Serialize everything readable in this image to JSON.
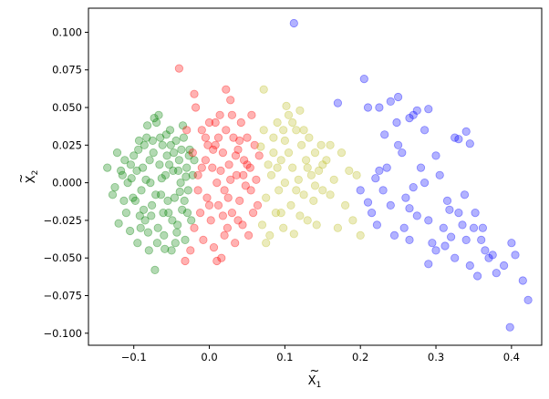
{
  "chart_data": {
    "type": "scatter",
    "title": "",
    "xlabel_base": "X",
    "xlabel_sub": "1",
    "ylabel_base": "X",
    "ylabel_sub": "2",
    "xlim": [
      -0.16,
      0.44
    ],
    "ylim": [
      -0.108,
      0.116
    ],
    "xticks": [
      -0.1,
      0.0,
      0.1,
      0.2,
      0.3,
      0.4
    ],
    "xtick_labels": [
      "−0.1",
      "0.0",
      "0.1",
      "0.2",
      "0.3",
      "0.4"
    ],
    "yticks": [
      -0.1,
      -0.075,
      -0.05,
      -0.025,
      0.0,
      0.025,
      0.05,
      0.075,
      0.1
    ],
    "ytick_labels": [
      "−0.100",
      "−0.075",
      "−0.050",
      "−0.025",
      "0.000",
      "0.025",
      "0.050",
      "0.075",
      "0.100"
    ],
    "grid": false,
    "legend": "none",
    "point_alpha": 0.3,
    "series": [
      {
        "color": "#008000",
        "points": [
          [
            -0.135,
            0.01
          ],
          [
            -0.122,
            0.02
          ],
          [
            -0.128,
            -0.008
          ],
          [
            -0.12,
            -0.027
          ],
          [
            -0.115,
            0.005
          ],
          [
            -0.11,
            -0.02
          ],
          [
            -0.112,
            0.015
          ],
          [
            -0.105,
            -0.032
          ],
          [
            -0.103,
            0.003
          ],
          [
            -0.1,
            0.018
          ],
          [
            -0.098,
            -0.012
          ],
          [
            -0.095,
            -0.04
          ],
          [
            -0.093,
            0.028
          ],
          [
            -0.09,
            -0.005
          ],
          [
            -0.088,
            0.01
          ],
          [
            -0.085,
            -0.025
          ],
          [
            -0.083,
            0.03
          ],
          [
            -0.08,
            -0.045
          ],
          [
            -0.078,
            0.0
          ],
          [
            -0.076,
            -0.015
          ],
          [
            -0.074,
            0.02
          ],
          [
            -0.072,
            -0.058
          ],
          [
            -0.07,
            0.04
          ],
          [
            -0.068,
            -0.03
          ],
          [
            -0.066,
            0.012
          ],
          [
            -0.064,
            -0.008
          ],
          [
            -0.062,
            0.025
          ],
          [
            -0.06,
            -0.035
          ],
          [
            -0.058,
            0.005
          ],
          [
            -0.056,
            0.018
          ],
          [
            -0.054,
            -0.02
          ],
          [
            -0.052,
            0.035
          ],
          [
            -0.05,
            -0.045
          ],
          [
            -0.048,
            0.008
          ],
          [
            -0.046,
            -0.01
          ],
          [
            -0.044,
            0.028
          ],
          [
            -0.042,
            -0.028
          ],
          [
            -0.04,
            0.015
          ],
          [
            -0.038,
            0.0
          ],
          [
            -0.036,
            -0.018
          ],
          [
            -0.034,
            0.03
          ],
          [
            -0.032,
            -0.038
          ],
          [
            -0.03,
            0.01
          ],
          [
            -0.028,
            -0.005
          ],
          [
            -0.026,
            0.022
          ],
          [
            -0.024,
            -0.025
          ],
          [
            -0.022,
            0.005
          ],
          [
            -0.02,
            0.015
          ],
          [
            -0.108,
            0.0
          ],
          [
            -0.096,
            0.008
          ],
          [
            -0.087,
            -0.018
          ],
          [
            -0.079,
            0.015
          ],
          [
            -0.071,
            -0.008
          ],
          [
            -0.063,
            0.003
          ],
          [
            -0.055,
            -0.012
          ],
          [
            -0.047,
            0.02
          ],
          [
            -0.039,
            -0.006
          ],
          [
            -0.031,
            0.004
          ],
          [
            -0.067,
            0.045
          ],
          [
            -0.073,
            0.043
          ],
          [
            -0.082,
            0.038
          ],
          [
            -0.091,
            -0.03
          ],
          [
            -0.059,
            -0.044
          ],
          [
            -0.045,
            -0.04
          ],
          [
            -0.035,
            0.038
          ],
          [
            -0.077,
            -0.022
          ],
          [
            -0.065,
            0.03
          ],
          [
            -0.053,
            0.012
          ],
          [
            -0.043,
            -0.033
          ],
          [
            -0.101,
            -0.01
          ],
          [
            -0.117,
            0.008
          ],
          [
            -0.125,
            -0.003
          ],
          [
            -0.094,
            0.022
          ],
          [
            -0.084,
            0.002
          ],
          [
            -0.075,
            0.028
          ],
          [
            -0.069,
            -0.04
          ],
          [
            -0.061,
            -0.02
          ],
          [
            -0.051,
            0.025
          ],
          [
            -0.041,
            0.008
          ],
          [
            -0.033,
            -0.012
          ],
          [
            -0.027,
            0.018
          ],
          [
            -0.057,
            0.032
          ],
          [
            -0.086,
            0.025
          ],
          [
            -0.092,
            -0.022
          ],
          [
            -0.104,
            0.012
          ],
          [
            -0.113,
            -0.012
          ],
          [
            -0.081,
            -0.033
          ],
          [
            -0.049,
            -0.025
          ],
          [
            -0.037,
            0.022
          ],
          [
            -0.029,
            -0.02
          ]
        ]
      },
      {
        "color": "#ff0000",
        "points": [
          [
            -0.04,
            0.076
          ],
          [
            -0.032,
            -0.052
          ],
          [
            -0.03,
            0.035
          ],
          [
            -0.025,
            -0.045
          ],
          [
            -0.022,
            0.02
          ],
          [
            -0.02,
            -0.03
          ],
          [
            -0.018,
            0.05
          ],
          [
            -0.015,
            0.005
          ],
          [
            -0.012,
            -0.02
          ],
          [
            -0.01,
            0.035
          ],
          [
            -0.008,
            -0.038
          ],
          [
            -0.005,
            0.015
          ],
          [
            -0.003,
            -0.01
          ],
          [
            0.0,
            0.04
          ],
          [
            0.002,
            -0.025
          ],
          [
            0.004,
            0.01
          ],
          [
            0.006,
            -0.043
          ],
          [
            0.008,
            0.025
          ],
          [
            0.01,
            0.0
          ],
          [
            0.012,
            -0.015
          ],
          [
            0.014,
            0.045
          ],
          [
            0.016,
            -0.05
          ],
          [
            0.018,
            0.02
          ],
          [
            0.02,
            -0.005
          ],
          [
            0.022,
            0.035
          ],
          [
            0.024,
            -0.03
          ],
          [
            0.026,
            0.012
          ],
          [
            0.028,
            0.055
          ],
          [
            0.03,
            -0.02
          ],
          [
            0.032,
            0.03
          ],
          [
            0.034,
            -0.04
          ],
          [
            0.036,
            0.005
          ],
          [
            0.038,
            0.022
          ],
          [
            0.04,
            -0.012
          ],
          [
            0.042,
            0.04
          ],
          [
            0.044,
            -0.028
          ],
          [
            0.046,
            0.015
          ],
          [
            0.048,
            -0.002
          ],
          [
            0.05,
            0.03
          ],
          [
            0.052,
            -0.035
          ],
          [
            0.054,
            0.01
          ],
          [
            0.056,
            0.045
          ],
          [
            0.058,
            -0.02
          ],
          [
            0.06,
            0.025
          ],
          [
            0.062,
            0.002
          ],
          [
            0.064,
            -0.015
          ],
          [
            0.066,
            0.018
          ],
          [
            -0.02,
            0.059
          ],
          [
            0.022,
            0.062
          ],
          [
            0.01,
            -0.052
          ],
          [
            -0.005,
            0.03
          ],
          [
            0.0,
            -0.015
          ],
          [
            0.005,
            0.022
          ],
          [
            0.015,
            0.008
          ],
          [
            0.025,
            -0.01
          ],
          [
            0.035,
            0.018
          ],
          [
            0.045,
            0.005
          ],
          [
            -0.015,
            -0.005
          ],
          [
            0.03,
            0.045
          ],
          [
            0.04,
            0.028
          ],
          [
            0.05,
            0.012
          ],
          [
            0.02,
            -0.035
          ],
          [
            0.012,
            0.03
          ],
          [
            -0.01,
            0.01
          ],
          [
            0.055,
            -0.005
          ],
          [
            0.018,
            -0.022
          ],
          [
            0.028,
            0.002
          ],
          [
            0.038,
            -0.025
          ],
          [
            0.008,
            0.04
          ],
          [
            -0.002,
            0.025
          ]
        ]
      },
      {
        "color": "#bcbd22",
        "points": [
          [
            0.068,
            0.024
          ],
          [
            0.07,
            -0.028
          ],
          [
            0.072,
            0.035
          ],
          [
            0.075,
            -0.01
          ],
          [
            0.078,
            0.012
          ],
          [
            0.08,
            -0.035
          ],
          [
            0.082,
            0.005
          ],
          [
            0.085,
            0.02
          ],
          [
            0.088,
            -0.02
          ],
          [
            0.09,
            0.04
          ],
          [
            0.092,
            -0.005
          ],
          [
            0.095,
            0.015
          ],
          [
            0.098,
            -0.03
          ],
          [
            0.1,
            0.028
          ],
          [
            0.102,
            0.051
          ],
          [
            0.105,
            0.045
          ],
          [
            0.108,
            -0.015
          ],
          [
            0.11,
            0.01
          ],
          [
            0.112,
            -0.034
          ],
          [
            0.115,
            0.035
          ],
          [
            0.118,
            0.002
          ],
          [
            0.12,
            -0.022
          ],
          [
            0.122,
            0.025
          ],
          [
            0.125,
            -0.008
          ],
          [
            0.128,
            0.015
          ],
          [
            0.13,
            -0.025
          ],
          [
            0.132,
            0.03
          ],
          [
            0.135,
            0.005
          ],
          [
            0.138,
            -0.012
          ],
          [
            0.14,
            0.02
          ],
          [
            0.142,
            -0.028
          ],
          [
            0.145,
            0.008
          ],
          [
            0.148,
            0.025
          ],
          [
            0.15,
            -0.005
          ],
          [
            0.155,
            0.015
          ],
          [
            0.16,
            -0.008
          ],
          [
            0.165,
            0.002
          ],
          [
            0.17,
            -0.03
          ],
          [
            0.175,
            0.02
          ],
          [
            0.18,
            -0.015
          ],
          [
            0.185,
            0.008
          ],
          [
            0.19,
            -0.025
          ],
          [
            0.195,
            0.005
          ],
          [
            0.2,
            -0.035
          ],
          [
            0.072,
            0.062
          ],
          [
            0.09,
            0.01
          ],
          [
            0.095,
            -0.02
          ],
          [
            0.1,
            0.0
          ],
          [
            0.105,
            0.02
          ],
          [
            0.115,
            -0.005
          ],
          [
            0.125,
            0.035
          ],
          [
            0.13,
            0.01
          ],
          [
            0.14,
            -0.002
          ],
          [
            0.15,
            0.012
          ],
          [
            0.16,
            0.025
          ],
          [
            0.085,
            0.03
          ],
          [
            0.098,
            0.035
          ],
          [
            0.11,
            0.04
          ],
          [
            0.12,
            0.048
          ],
          [
            0.075,
            -0.04
          ]
        ]
      },
      {
        "color": "#0000ff",
        "points": [
          [
            0.112,
            0.106
          ],
          [
            0.17,
            0.053
          ],
          [
            0.205,
            0.069
          ],
          [
            0.21,
            0.05
          ],
          [
            0.225,
            0.05
          ],
          [
            0.24,
            0.054
          ],
          [
            0.25,
            0.057
          ],
          [
            0.265,
            0.043
          ],
          [
            0.27,
            0.045
          ],
          [
            0.275,
            0.048
          ],
          [
            0.29,
            0.049
          ],
          [
            0.3,
            0.018
          ],
          [
            0.325,
            0.03
          ],
          [
            0.33,
            0.029
          ],
          [
            0.34,
            0.034
          ],
          [
            0.345,
            0.026
          ],
          [
            0.21,
            -0.013
          ],
          [
            0.215,
            -0.02
          ],
          [
            0.22,
            0.003
          ],
          [
            0.225,
            0.008
          ],
          [
            0.23,
            -0.005
          ],
          [
            0.235,
            0.01
          ],
          [
            0.24,
            -0.015
          ],
          [
            0.245,
            -0.035
          ],
          [
            0.25,
            0.025
          ],
          [
            0.255,
            0.02
          ],
          [
            0.26,
            -0.01
          ],
          [
            0.265,
            -0.017
          ],
          [
            0.27,
            -0.003
          ],
          [
            0.275,
            -0.022
          ],
          [
            0.28,
            0.01
          ],
          [
            0.285,
            0.0
          ],
          [
            0.29,
            -0.025
          ],
          [
            0.295,
            -0.04
          ],
          [
            0.3,
            -0.045
          ],
          [
            0.305,
            0.005
          ],
          [
            0.31,
            -0.03
          ],
          [
            0.315,
            -0.012
          ],
          [
            0.32,
            -0.036
          ],
          [
            0.325,
            -0.05
          ],
          [
            0.33,
            -0.02
          ],
          [
            0.335,
            -0.028
          ],
          [
            0.34,
            -0.038
          ],
          [
            0.345,
            -0.055
          ],
          [
            0.35,
            -0.03
          ],
          [
            0.355,
            -0.062
          ],
          [
            0.36,
            -0.038
          ],
          [
            0.365,
            -0.045
          ],
          [
            0.37,
            -0.05
          ],
          [
            0.375,
            -0.048
          ],
          [
            0.38,
            -0.06
          ],
          [
            0.39,
            -0.055
          ],
          [
            0.4,
            -0.04
          ],
          [
            0.405,
            -0.048
          ],
          [
            0.415,
            -0.065
          ],
          [
            0.422,
            -0.078
          ],
          [
            0.398,
            -0.096
          ],
          [
            0.29,
            -0.054
          ],
          [
            0.265,
            -0.038
          ],
          [
            0.232,
            0.032
          ],
          [
            0.248,
            0.04
          ],
          [
            0.285,
            0.035
          ],
          [
            0.2,
            -0.005
          ],
          [
            0.222,
            -0.028
          ],
          [
            0.258,
            -0.03
          ],
          [
            0.318,
            -0.018
          ],
          [
            0.338,
            -0.008
          ],
          [
            0.352,
            -0.02
          ],
          [
            0.362,
            -0.03
          ],
          [
            0.312,
            -0.042
          ]
        ]
      }
    ]
  }
}
